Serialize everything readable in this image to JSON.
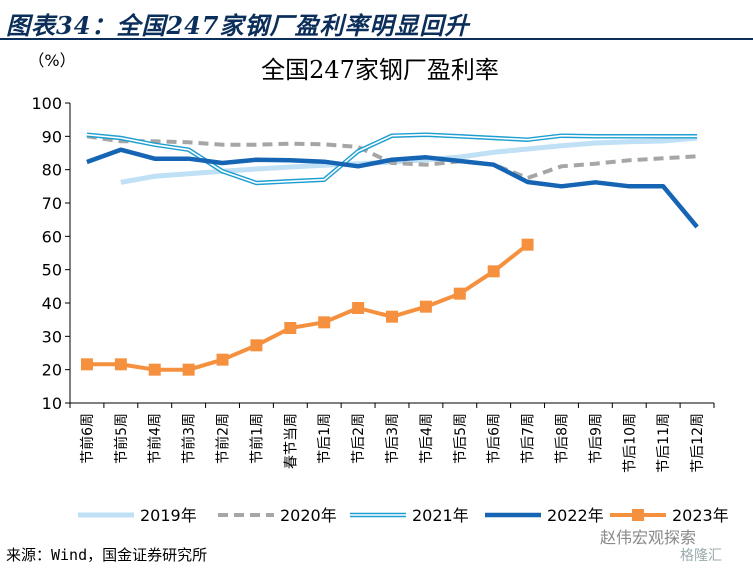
{
  "header": {
    "title": "图表34：全国247家钢厂盈利率明显回升"
  },
  "source": "来源：Wind，国金证券研究所",
  "watermark": "赵伟宏观探索",
  "watermark2": "格隆汇",
  "chart_data": {
    "type": "line",
    "title": "全国247家钢厂盈利率",
    "ylabel": "（%）",
    "ylim": [
      10,
      100
    ],
    "yticks": [
      10,
      20,
      30,
      40,
      50,
      60,
      70,
      80,
      90,
      100
    ],
    "categories": [
      "节前6周",
      "节前5周",
      "节前4周",
      "节前3周",
      "节前2周",
      "节前1周",
      "春节当周",
      "节后1周",
      "节后2周",
      "节后3周",
      "节后4周",
      "节后5周",
      "节后6周",
      "节后7周",
      "节后8周",
      "节后9周",
      "节后10周",
      "节后11周",
      "节后12周"
    ],
    "legend_position": "bottom",
    "series": [
      {
        "name": "2019年",
        "style": "thick-light",
        "color": "#bfe0f5",
        "values": [
          null,
          76.2,
          78,
          78.8,
          79.5,
          80.2,
          80.8,
          81.3,
          81.8,
          82.3,
          83,
          83.8,
          85.2,
          86.2,
          87.2,
          88,
          88.4,
          88.6,
          89.5
        ]
      },
      {
        "name": "2020年",
        "style": "dashed-grey",
        "color": "#a6a6a6",
        "values": [
          90,
          88.5,
          88.5,
          88.2,
          87.5,
          87.5,
          87.8,
          87.6,
          86.8,
          82,
          81.5,
          82.5,
          81.5,
          77.5,
          81,
          81.8,
          82.8,
          83.4,
          84
        ]
      },
      {
        "name": "2021年",
        "style": "double-line",
        "color": "#1f9ed1",
        "values": [
          90.5,
          89.5,
          87.5,
          86,
          79.5,
          76,
          76.5,
          77,
          85.5,
          90.2,
          90.5,
          90,
          89.5,
          89,
          90.2,
          90,
          90,
          90,
          90
        ]
      },
      {
        "name": "2022年",
        "style": "thick-blue",
        "color": "#1565b4",
        "values": [
          82.3,
          86,
          83.3,
          83.3,
          82,
          83,
          82.8,
          82.4,
          81,
          83,
          83.7,
          82.6,
          81.5,
          76.3,
          75,
          76.2,
          75,
          75,
          62.8
        ]
      },
      {
        "name": "2023年",
        "style": "orange-square",
        "color": "#f5913e",
        "values": [
          21.6,
          21.6,
          20,
          20,
          23,
          27.3,
          32.5,
          34.2,
          38.5,
          35.9,
          38.9,
          42.8,
          49.5,
          57.5,
          null,
          null,
          null,
          null,
          null
        ]
      }
    ]
  }
}
